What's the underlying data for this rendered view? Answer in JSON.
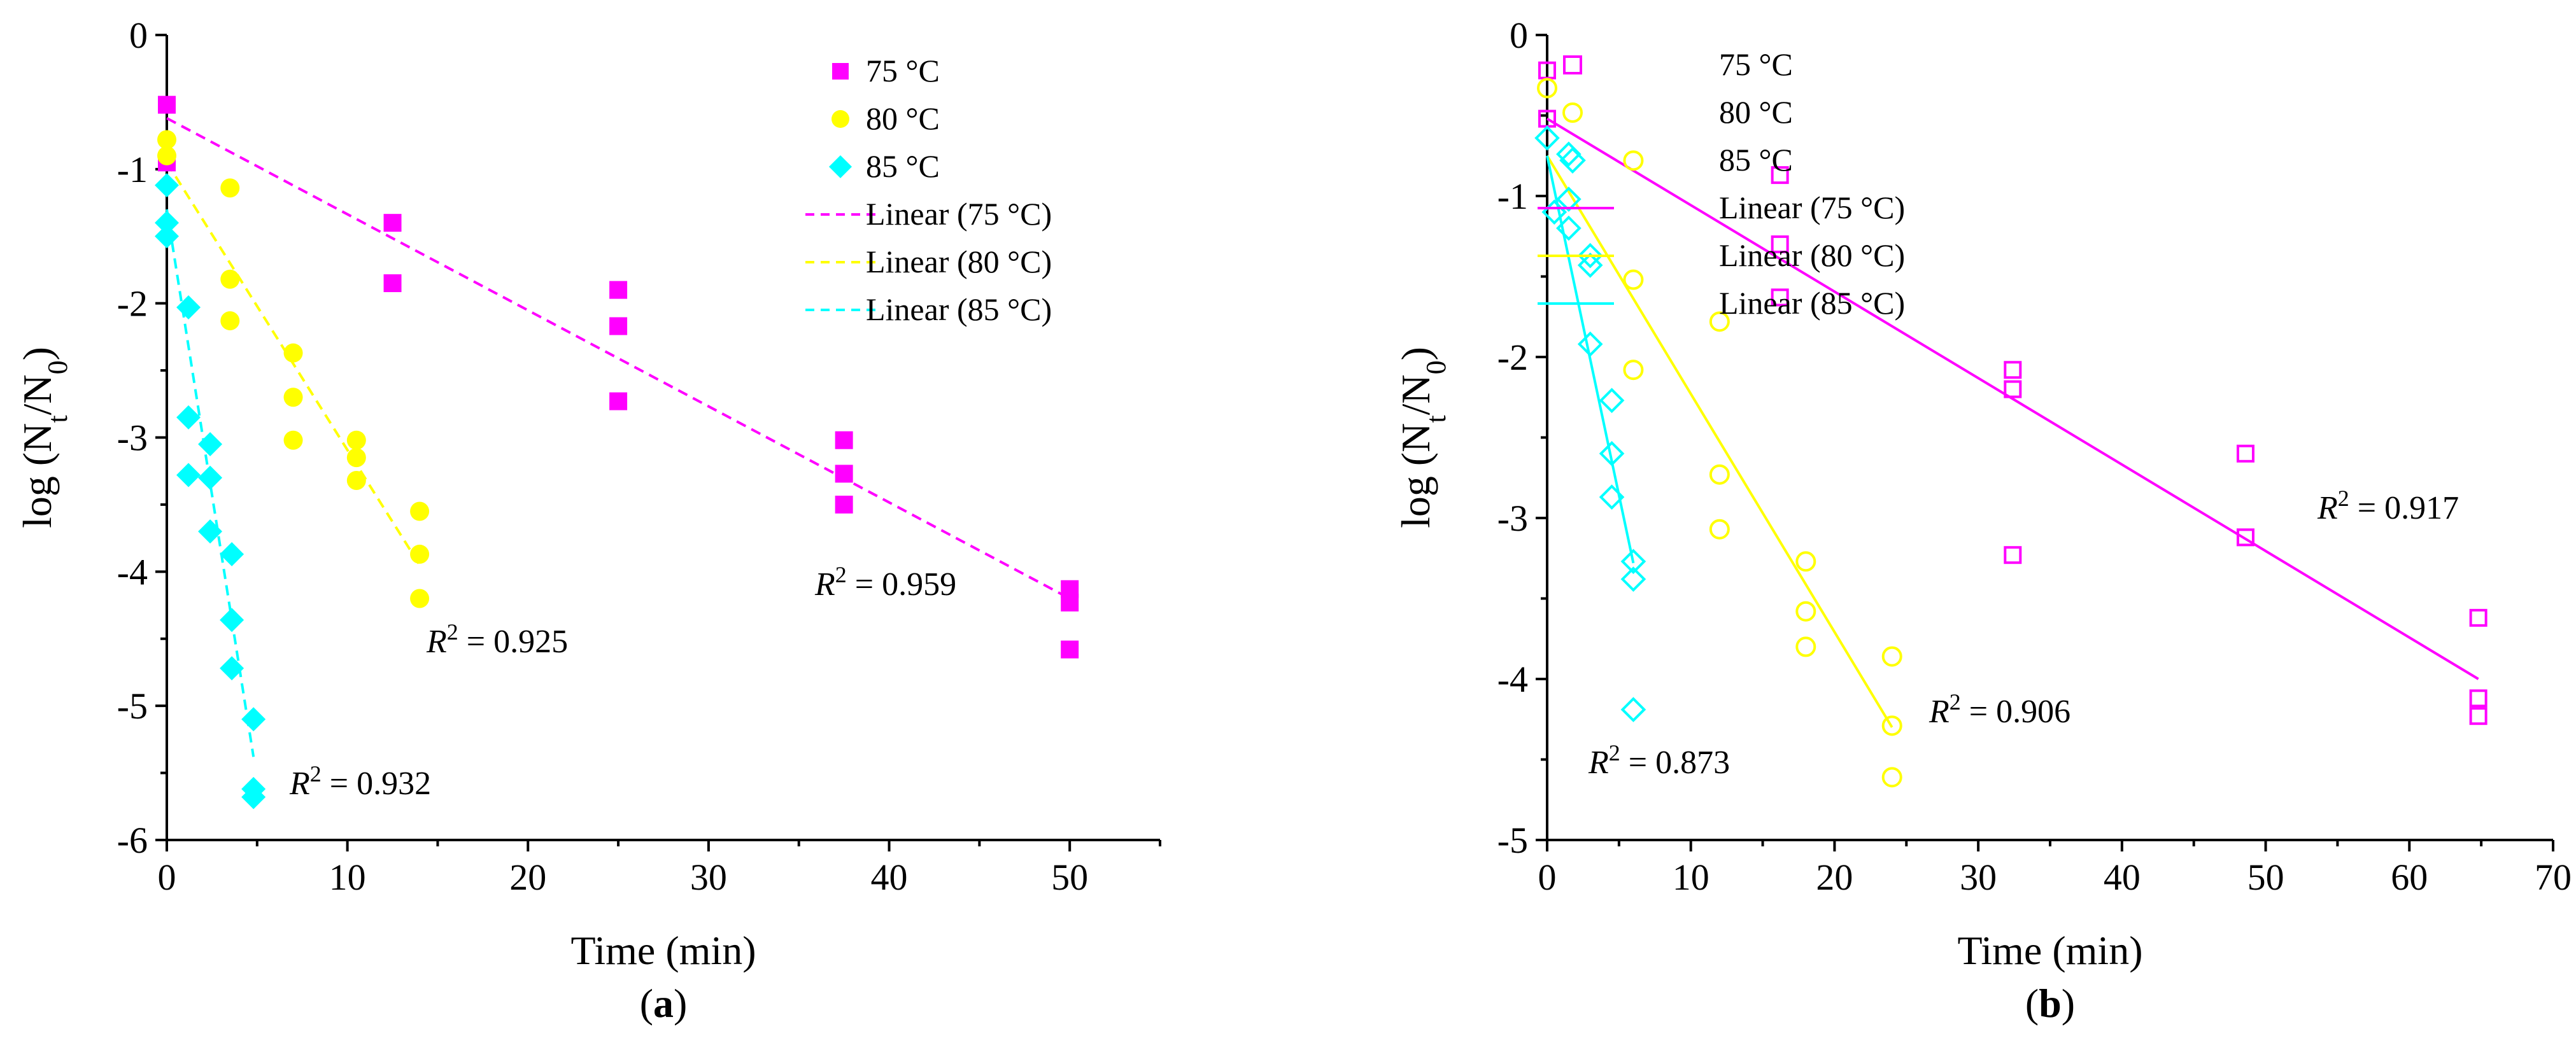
{
  "chart_data": [
    {
      "panel": "a",
      "type": "scatter",
      "xlabel": "Time (min)",
      "ylabel": "log (N_t/N_0)",
      "xlim": [
        0,
        55
      ],
      "ylim": [
        -6,
        0
      ],
      "xticks": [
        0,
        10,
        20,
        30,
        40,
        50
      ],
      "yticks": [
        0,
        -1,
        -2,
        -3,
        -4,
        -5,
        -6
      ],
      "legend_position": "top-right",
      "marker_style": "filled",
      "line_style": "dashed",
      "series": [
        {
          "name": "75 °C",
          "color": "#ff00ff",
          "marker": "square",
          "x": [
            0,
            0,
            12.5,
            12.5,
            25,
            25,
            25,
            37.5,
            37.5,
            37.5,
            50,
            50,
            50
          ],
          "y": [
            -0.52,
            -0.95,
            -1.4,
            -1.85,
            -1.9,
            -2.17,
            -2.73,
            -3.02,
            -3.27,
            -3.5,
            -4.13,
            -4.23,
            -4.58
          ]
        },
        {
          "name": "80 °C",
          "color": "#ffff00",
          "marker": "circle",
          "x": [
            0,
            0,
            3.5,
            3.5,
            3.5,
            7,
            7,
            7,
            10.5,
            10.5,
            10.5,
            14,
            14,
            14
          ],
          "y": [
            -0.78,
            -0.9,
            -1.14,
            -1.82,
            -2.13,
            -2.37,
            -2.7,
            -3.02,
            -3.02,
            -3.15,
            -3.32,
            -3.55,
            -3.87,
            -4.2
          ]
        },
        {
          "name": "85 °C",
          "color": "#00ffff",
          "marker": "diamond",
          "x": [
            0,
            0,
            0,
            1.2,
            1.2,
            1.2,
            2.4,
            2.4,
            2.4,
            3.6,
            3.6,
            3.6,
            4.8,
            4.8,
            4.8
          ],
          "y": [
            -1.12,
            -1.4,
            -1.5,
            -2.03,
            -2.85,
            -3.28,
            -3.05,
            -3.3,
            -3.7,
            -3.87,
            -4.36,
            -4.72,
            -5.1,
            -5.62,
            -5.68
          ]
        }
      ],
      "fits": [
        {
          "name": "Linear (75 °C)",
          "color": "#ff00ff",
          "x": [
            0,
            50
          ],
          "y": [
            -0.62,
            -4.2
          ],
          "r2": "0.959"
        },
        {
          "name": "Linear (80 °C)",
          "color": "#ffff00",
          "x": [
            0,
            14
          ],
          "y": [
            -0.95,
            -3.95
          ],
          "r2": "0.925"
        },
        {
          "name": "Linear (85 °C)",
          "color": "#00ffff",
          "x": [
            0,
            4.8
          ],
          "y": [
            -1.3,
            -5.38
          ],
          "r2": "0.932"
        }
      ],
      "r2_prefix": "R",
      "r2_exp": "2",
      "r2_eq": " = ",
      "panel_label": "a"
    },
    {
      "panel": "b",
      "type": "scatter",
      "xlabel": "Time (min)",
      "ylabel": "log (N_t/N_0)",
      "xlim": [
        0,
        70
      ],
      "ylim": [
        -5,
        0
      ],
      "xticks": [
        0,
        10,
        20,
        30,
        40,
        50,
        60,
        70
      ],
      "yticks": [
        0,
        -1,
        -2,
        -3,
        -4,
        -5
      ],
      "legend_position": "top-right",
      "marker_style": "open",
      "line_style": "solid",
      "series": [
        {
          "name": "75 °C",
          "color": "#ff00ff",
          "marker": "square",
          "x": [
            0,
            0,
            16.2,
            16.2,
            16.2,
            32.4,
            32.4,
            32.4,
            48.6,
            48.6,
            64.8,
            64.8,
            64.8
          ],
          "y": [
            -0.22,
            -0.52,
            -0.87,
            -1.3,
            -1.63,
            -2.08,
            -2.2,
            -3.23,
            -2.6,
            -3.12,
            -3.62,
            -4.12,
            -4.23
          ]
        },
        {
          "name": "80 °C",
          "color": "#ffff00",
          "marker": "circle",
          "x": [
            0,
            6,
            6,
            6,
            12,
            12,
            12,
            18,
            18,
            18,
            24,
            24,
            24
          ],
          "y": [
            -0.33,
            -0.78,
            -1.52,
            -2.08,
            -1.78,
            -2.73,
            -3.07,
            -3.27,
            -3.58,
            -3.8,
            -3.86,
            -4.29,
            -4.61
          ]
        },
        {
          "name": "85 °C",
          "color": "#00ffff",
          "marker": "diamond",
          "x": [
            0,
            0.5,
            1.5,
            1.5,
            1.5,
            3,
            3,
            3,
            4.5,
            4.5,
            4.5,
            6,
            6,
            6
          ],
          "y": [
            -0.64,
            -1.1,
            -0.74,
            -1.02,
            -1.2,
            -1.37,
            -1.43,
            -1.92,
            -2.27,
            -2.6,
            -2.87,
            -3.27,
            -3.38,
            -4.19
          ]
        }
      ],
      "fits": [
        {
          "name": "Linear (75 °C)",
          "color": "#ff00ff",
          "x": [
            0,
            64.8
          ],
          "y": [
            -0.52,
            -4.0
          ],
          "r2": "0.917"
        },
        {
          "name": "Linear (80 °C)",
          "color": "#ffff00",
          "x": [
            0,
            24
          ],
          "y": [
            -0.75,
            -4.3
          ],
          "r2": "0.906"
        },
        {
          "name": "Linear (85 °C)",
          "color": "#00ffff",
          "x": [
            0,
            6
          ],
          "y": [
            -0.75,
            -3.28
          ],
          "r2": "0.873"
        }
      ],
      "r2_prefix": "R",
      "r2_exp": "2",
      "r2_eq": " = ",
      "panel_label": "b"
    }
  ]
}
